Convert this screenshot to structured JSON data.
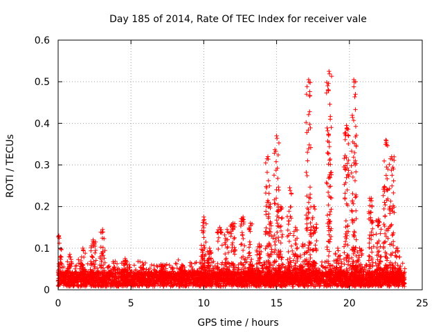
{
  "chart_data": {
    "type": "scatter",
    "title": "Day 185 of 2014, Rate Of TEC Index for receiver vale",
    "xlabel": "GPS time / hours",
    "ylabel": "ROTI / TECUs",
    "xlim": [
      0,
      25
    ],
    "ylim": [
      0,
      0.6
    ],
    "xticks": [
      0,
      5,
      10,
      15,
      20,
      25
    ],
    "xtick_labels": [
      "0",
      "5",
      "10",
      "15",
      "20",
      "25"
    ],
    "yticks": [
      0,
      0.1,
      0.2,
      0.3,
      0.4,
      0.5,
      0.6
    ],
    "ytick_labels": [
      "0",
      "0.1",
      "0.2",
      "0.3",
      "0.4",
      "0.5",
      "0.6"
    ],
    "grid": true,
    "marker": "+",
    "color": "#ff0000",
    "data_range_x": [
      0,
      23.8
    ],
    "spikes": [
      {
        "x": 0.05,
        "peak": 0.13
      },
      {
        "x": 0.8,
        "peak": 0.085
      },
      {
        "x": 1.7,
        "peak": 0.1
      },
      {
        "x": 2.4,
        "peak": 0.12
      },
      {
        "x": 3.05,
        "peak": 0.145
      },
      {
        "x": 4.6,
        "peak": 0.075
      },
      {
        "x": 5.8,
        "peak": 0.065
      },
      {
        "x": 7.2,
        "peak": 0.06
      },
      {
        "x": 8.5,
        "peak": 0.06
      },
      {
        "x": 9.9,
        "peak": 0.09
      },
      {
        "x": 10.0,
        "peak": 0.175
      },
      {
        "x": 10.4,
        "peak": 0.1
      },
      {
        "x": 11.1,
        "peak": 0.15
      },
      {
        "x": 11.6,
        "peak": 0.145
      },
      {
        "x": 12.0,
        "peak": 0.16
      },
      {
        "x": 12.7,
        "peak": 0.175
      },
      {
        "x": 13.2,
        "peak": 0.16
      },
      {
        "x": 13.8,
        "peak": 0.11
      },
      {
        "x": 14.4,
        "peak": 0.32
      },
      {
        "x": 14.6,
        "peak": 0.16
      },
      {
        "x": 15.0,
        "peak": 0.37
      },
      {
        "x": 15.3,
        "peak": 0.2
      },
      {
        "x": 15.9,
        "peak": 0.245
      },
      {
        "x": 16.3,
        "peak": 0.15
      },
      {
        "x": 16.8,
        "peak": 0.11
      },
      {
        "x": 17.2,
        "peak": 0.505
      },
      {
        "x": 17.6,
        "peak": 0.2
      },
      {
        "x": 18.6,
        "peak": 0.525
      },
      {
        "x": 19.2,
        "peak": 0.1
      },
      {
        "x": 19.8,
        "peak": 0.395
      },
      {
        "x": 20.3,
        "peak": 0.505
      },
      {
        "x": 20.7,
        "peak": 0.1
      },
      {
        "x": 21.5,
        "peak": 0.22
      },
      {
        "x": 22.0,
        "peak": 0.17
      },
      {
        "x": 22.5,
        "peak": 0.36
      },
      {
        "x": 22.9,
        "peak": 0.32
      },
      {
        "x": 23.3,
        "peak": 0.1
      }
    ]
  }
}
